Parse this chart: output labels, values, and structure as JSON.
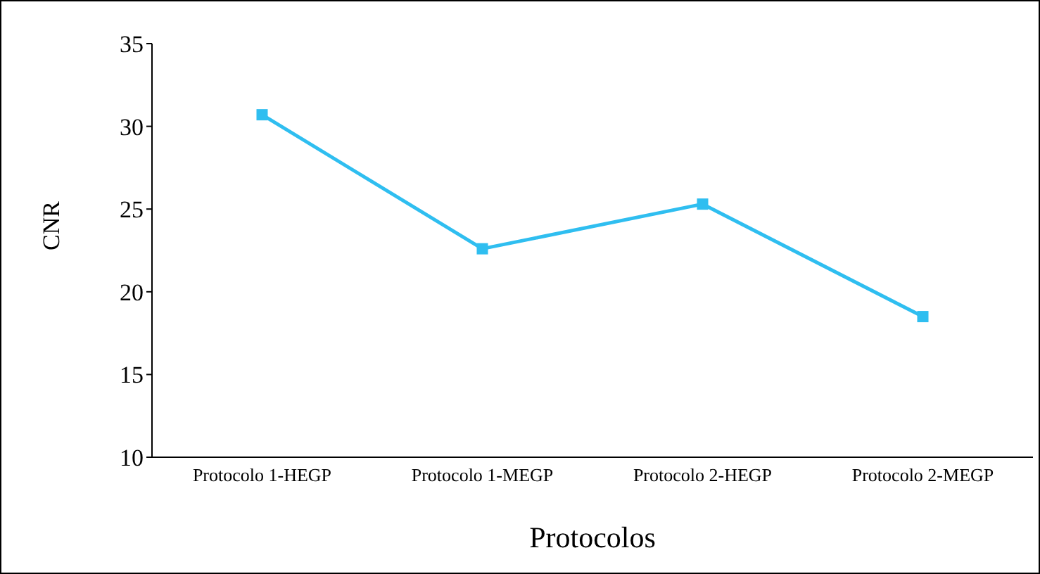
{
  "chart_data": {
    "type": "line",
    "xlabel": "Protocolos",
    "ylabel": "CNR",
    "categories": [
      "Protocolo 1-HEGP",
      "Protocolo 1-MEGP",
      "Protocolo 2-HEGP",
      "Protocolo 2-MEGP"
    ],
    "series": [
      {
        "color": "#2fbef0",
        "values": [
          30.7,
          22.6,
          25.3,
          18.5
        ]
      }
    ],
    "ylim": [
      10,
      35
    ],
    "yticks": [
      10,
      15,
      20,
      25,
      30,
      35
    ],
    "grid": false,
    "marker": "square",
    "line_style": "solid"
  }
}
